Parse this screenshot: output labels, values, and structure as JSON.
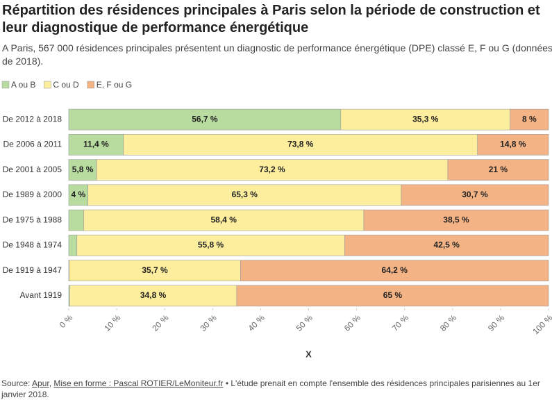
{
  "chart_data": {
    "type": "stacked-barh",
    "title": "Répartition des résidences principales à Paris selon la période de construction et leur diagnostique de performance énergétique",
    "subtitle": "A Paris, 567 000 résidences principales présentent un diagnostic de performance énergétique (DPE) classé E, F ou G (données de 2018).",
    "categories": [
      "De 2012 à 2018",
      "De 2006 à 2011",
      "De 2001 à 2005",
      "De 1989 à 2000",
      "De 1975 à 1988",
      "De 1948 à 1974",
      "De 1919 à 1947",
      "Avant 1919"
    ],
    "series": [
      {
        "name": "A ou B",
        "color": "#b8dba0",
        "values": [
          56.7,
          11.4,
          5.8,
          4,
          3.1,
          1.7,
          0.1,
          0.2
        ],
        "value_labels": [
          "56,7 %",
          "11,4 %",
          "5,8 %",
          "4 %",
          null,
          null,
          null,
          null
        ]
      },
      {
        "name": "C ou D",
        "color": "#fcee9c",
        "values": [
          35.3,
          73.8,
          73.2,
          65.3,
          58.4,
          55.8,
          35.7,
          34.8
        ],
        "value_labels": [
          "35,3 %",
          "73,8 %",
          "73,2 %",
          "65,3 %",
          "58,4 %",
          "55,8 %",
          "35,7 %",
          "34,8 %"
        ]
      },
      {
        "name": "E, F ou G",
        "color": "#f4b385",
        "values": [
          8,
          14.8,
          21,
          30.7,
          38.5,
          42.5,
          64.2,
          65
        ],
        "value_labels": [
          "8 %",
          "14,8 %",
          "21 %",
          "30,7 %",
          "38,5 %",
          "42,5 %",
          "64,2 %",
          "65 %"
        ]
      }
    ],
    "xlim": [
      0,
      100
    ],
    "xticks": [
      {
        "value": 0,
        "label": "0 %"
      },
      {
        "value": 10,
        "label": "10 %"
      },
      {
        "value": 20,
        "label": "20 %"
      },
      {
        "value": 30,
        "label": "30 %"
      },
      {
        "value": 40,
        "label": "40 %"
      },
      {
        "value": 50,
        "label": "50 %"
      },
      {
        "value": 60,
        "label": "60 %"
      },
      {
        "value": 70,
        "label": "70 %"
      },
      {
        "value": 80,
        "label": "80 %"
      },
      {
        "value": 90,
        "label": "90 %"
      },
      {
        "value": 100,
        "label": "100 %"
      }
    ],
    "xlabel": "X",
    "grid": false,
    "legend": "top-left",
    "source_prefix": "Source:",
    "source_links": [
      "Apur",
      "Mise en forme : Pascal ROTIER/LeMoniteur.fr"
    ],
    "note": "L'étude prenait en compte l'ensemble des résidences principales parisiennes au 1er janvier 2018."
  }
}
